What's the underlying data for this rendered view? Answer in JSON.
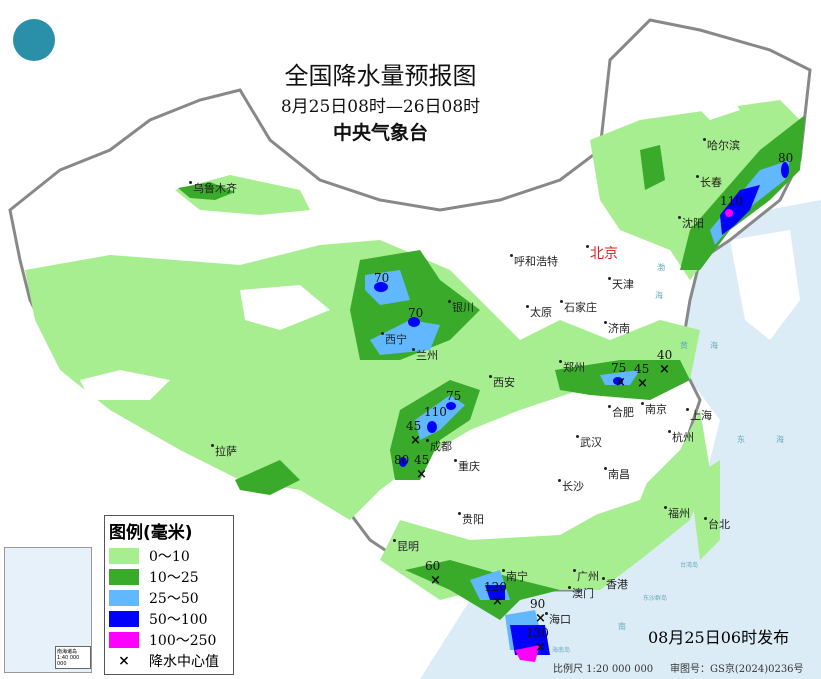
{
  "header": {
    "title": "全国降水量预报图",
    "period": "8月25日08时—26日08时",
    "issuer": "中央气象台"
  },
  "colors": {
    "r0_10": "#a6ee90",
    "r10_25": "#3aaa2a",
    "r25_50": "#62b8fe",
    "r50_100": "#0000fe",
    "r100_250": "#fe00fe",
    "sea": "#dcecf6"
  },
  "legend": {
    "title": "图例(毫米)",
    "items": [
      {
        "label": "0～10",
        "color": "#a6ee90"
      },
      {
        "label": "10～25",
        "color": "#3aaa2a"
      },
      {
        "label": "25～50",
        "color": "#62b8fe"
      },
      {
        "label": "50～100",
        "color": "#0000fe"
      },
      {
        "label": "100～250",
        "color": "#fe00fe"
      }
    ],
    "center_marker": "降水中心值",
    "center_icon": "x-mark"
  },
  "cities": [
    "乌鲁木齐",
    "哈尔滨",
    "长春",
    "沈阳",
    "北京",
    "呼和浩特",
    "天津",
    "太原",
    "石家庄",
    "济南",
    "银川",
    "西宁",
    "兰州",
    "郑州",
    "西安",
    "合肥",
    "南京",
    "上海",
    "杭州",
    "武汉",
    "成都",
    "重庆",
    "拉萨",
    "南昌",
    "长沙",
    "贵阳",
    "福州",
    "台北",
    "昆明",
    "南宁",
    "广州",
    "澳门",
    "香港",
    "海口"
  ],
  "sea_labels": [
    "渤",
    "海",
    "黄",
    "海",
    "东",
    "海",
    "台湾岛",
    "东沙群岛",
    "南",
    "海南岛"
  ],
  "rain_centers": [
    "70",
    "70",
    "110",
    "80",
    "75",
    "45",
    "40",
    "75",
    "110",
    "45",
    "80",
    "45",
    "60",
    "120",
    "90",
    "130"
  ],
  "footer": {
    "issued": "08月25日06时发布",
    "scale": "比例尺 1:20 000 000",
    "review": "审图号：GS京(2024)0236号",
    "inset_label": "南海诸岛 1:40 000 000"
  },
  "logo": {
    "name": "weather-logo"
  }
}
